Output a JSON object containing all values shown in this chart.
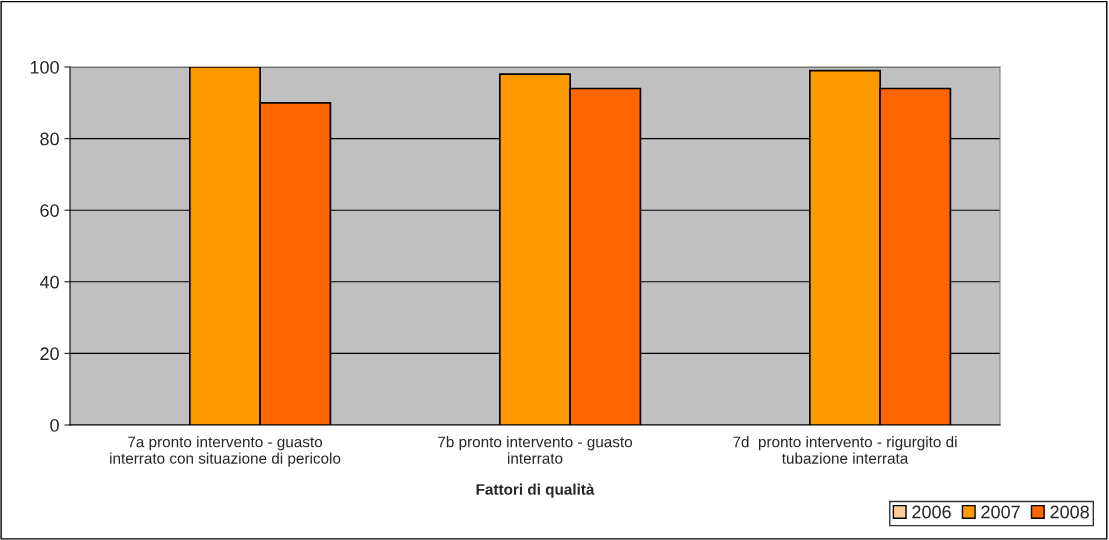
{
  "chart_data": {
    "type": "bar",
    "xlabel": "Fattori di qualità",
    "categories": [
      "7a pronto intervento - guasto\ninterrato con situazione di pericolo",
      "7b pronto intervento - guasto\ninterrato",
      "7d  pronto intervento - rigurgito di\ntubazione interrata"
    ],
    "series": [
      {
        "name": "2006",
        "color": "#ffcc99",
        "values": [
          null,
          null,
          null
        ]
      },
      {
        "name": "2007",
        "color": "#ff9900",
        "values": [
          100,
          98,
          99
        ]
      },
      {
        "name": "2008",
        "color": "#ff6600",
        "values": [
          90,
          94,
          94
        ]
      }
    ],
    "ylim": [
      0,
      100
    ],
    "yticks": [
      0,
      20,
      40,
      60,
      80,
      100
    ],
    "grid": "y",
    "legend": "bottom right"
  }
}
